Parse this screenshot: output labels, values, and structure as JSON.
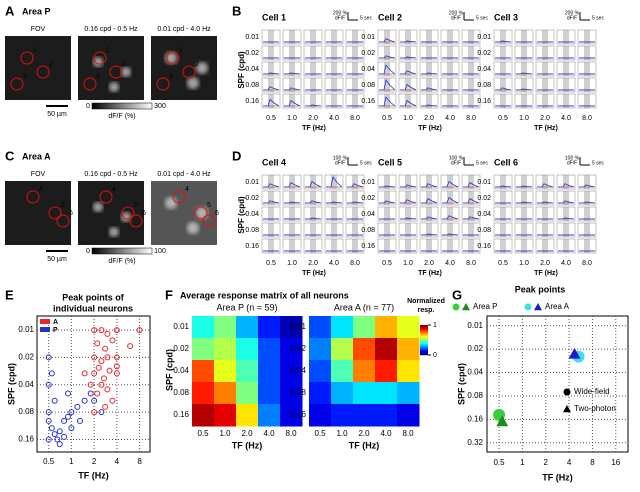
{
  "A": {
    "label": "A",
    "title": "Area P",
    "image_titles": [
      "FOV",
      "0.16 cpd - 0.5 Hz",
      "0.01 cpd - 4.0 Hz"
    ],
    "roi_labels": [
      "1",
      "2",
      "3"
    ],
    "scale_bar": "50 µm",
    "colorbar_ticks": [
      0,
      300
    ],
    "colorbar_label": "dF/F (%)"
  },
  "B": {
    "label": "B",
    "ylabel": "SPF (cpd)",
    "xlabel": "TF (Hz)",
    "yticks": [
      0.01,
      0.02,
      0.04,
      0.08,
      0.16
    ],
    "xticks": [
      "0.5",
      "1.0",
      "2.0",
      "4.0",
      "8.0"
    ],
    "scale_unit": "dF/F",
    "scale_time": "5 sec",
    "cells": [
      {
        "name": "Cell 1",
        "scale": "200 %",
        "peaks": [
          [
            0,
            0,
            0,
            0,
            0
          ],
          [
            0,
            0,
            0,
            0,
            0
          ],
          [
            0.1,
            0.1,
            0,
            0,
            0
          ],
          [
            0.3,
            0.2,
            0,
            0,
            0
          ],
          [
            0.6,
            0.5,
            0.1,
            0,
            0
          ]
        ]
      },
      {
        "name": "Cell 2",
        "scale": "200 %",
        "peaks": [
          [
            0.3,
            0.1,
            0,
            0,
            0
          ],
          [
            0.2,
            0.1,
            0,
            0,
            0
          ],
          [
            0.8,
            0.3,
            0.1,
            0,
            0
          ],
          [
            0.9,
            0.5,
            0.2,
            0,
            0
          ],
          [
            0.8,
            0.5,
            0.1,
            0,
            0
          ]
        ]
      },
      {
        "name": "Cell 3",
        "scale": "200 %",
        "peaks": [
          [
            0.1,
            0,
            0,
            0,
            0
          ],
          [
            0,
            0,
            0,
            0,
            0
          ],
          [
            0,
            0.1,
            0,
            0,
            0
          ],
          [
            0.2,
            0.1,
            0,
            0,
            0
          ],
          [
            0,
            0,
            0,
            0,
            0
          ]
        ]
      }
    ]
  },
  "C": {
    "label": "C",
    "title": "Area A",
    "image_titles": [
      "FOV",
      "0.16 cpd - 0.5 Hz",
      "0.01 cpd - 4.0 Hz"
    ],
    "roi_labels": [
      "4",
      "5",
      "6"
    ],
    "scale_bar": "50 µm",
    "colorbar_ticks": [
      0,
      100
    ],
    "colorbar_label": "dF/F (%)"
  },
  "D": {
    "label": "D",
    "ylabel": "SPF (cpd)",
    "xlabel": "TF (Hz)",
    "yticks": [
      0.01,
      0.02,
      0.04,
      0.08,
      0.16
    ],
    "xticks": [
      "0.5",
      "1.0",
      "2.0",
      "4.0",
      "8.0"
    ],
    "scale_unit": "dF/F",
    "scale_time": "5 sec",
    "cells": [
      {
        "name": "Cell 4",
        "scale": "100 %",
        "peaks": [
          [
            0.3,
            0.4,
            0.5,
            0.9,
            0.3
          ],
          [
            0.2,
            0.1,
            0.2,
            0.1,
            0.1
          ],
          [
            0,
            0,
            0.1,
            0,
            0
          ],
          [
            0,
            0,
            0,
            0,
            0
          ],
          [
            0,
            0,
            0,
            0,
            0
          ]
        ]
      },
      {
        "name": "Cell 5",
        "scale": "100 %",
        "peaks": [
          [
            0.1,
            0.2,
            0.3,
            0.5,
            0.4
          ],
          [
            0.2,
            0.3,
            0.4,
            0.5,
            0.4
          ],
          [
            0,
            0.1,
            0.2,
            0.3,
            0.2
          ],
          [
            0,
            0,
            0.1,
            0.1,
            0
          ],
          [
            0,
            0,
            0,
            0,
            0
          ]
        ]
      },
      {
        "name": "Cell 6",
        "scale": "100 %",
        "peaks": [
          [
            0.1,
            0.1,
            0.3,
            0.3,
            0.2
          ],
          [
            0,
            0.1,
            0.1,
            0.2,
            0.1
          ],
          [
            0,
            0,
            0,
            0.1,
            0
          ],
          [
            0,
            0,
            0,
            0,
            0
          ],
          [
            0,
            0,
            0,
            0,
            0
          ]
        ]
      }
    ]
  },
  "E": {
    "label": "E",
    "title_lines": [
      "Peak points of",
      "individual neurons"
    ],
    "xlabel": "TF (Hz)",
    "ylabel": "SPF (cpd)",
    "xlim": [
      0.35,
      11
    ],
    "ylim": [
      0.007,
      0.22
    ],
    "xticks": [
      0.5,
      1,
      2,
      4,
      8
    ],
    "yticks": [
      0.01,
      0.02,
      0.04,
      0.08,
      0.16
    ],
    "series": [
      {
        "name": "A",
        "color": "#e8262a",
        "x": [
          2,
          2.5,
          3,
          4,
          8,
          2.2,
          2.8,
          3.5,
          2,
          2.5,
          3,
          4,
          2.3,
          3.2,
          2,
          2.7,
          4,
          1.8,
          2.5,
          3,
          2.2,
          3.5,
          2.8,
          2,
          4,
          6,
          1.5
        ],
        "y": [
          0.01,
          0.01,
          0.011,
          0.01,
          0.01,
          0.014,
          0.016,
          0.013,
          0.02,
          0.022,
          0.02,
          0.02,
          0.026,
          0.028,
          0.03,
          0.034,
          0.03,
          0.04,
          0.04,
          0.045,
          0.05,
          0.06,
          0.07,
          0.08,
          0.025,
          0.015,
          0.03
        ]
      },
      {
        "name": "P",
        "color": "#2433d0",
        "x": [
          0.5,
          0.55,
          0.6,
          0.5,
          0.65,
          0.7,
          0.8,
          0.5,
          0.9,
          1,
          1.2,
          1.5,
          0.6,
          0.5,
          0.55,
          0.5,
          1.8,
          2,
          2.5,
          0.7,
          0.8,
          1,
          1.3,
          0.9
        ],
        "y": [
          0.1,
          0.12,
          0.14,
          0.16,
          0.16,
          0.13,
          0.1,
          0.08,
          0.09,
          0.08,
          0.07,
          0.06,
          0.06,
          0.02,
          0.03,
          0.04,
          0.05,
          0.06,
          0.08,
          0.18,
          0.15,
          0.12,
          0.1,
          0.05
        ]
      }
    ]
  },
  "F": {
    "label": "F",
    "title": "Average response matrix of all neurons",
    "colorbar_title": [
      "Normalized",
      "resp."
    ],
    "colorbar_ticks": [
      0,
      1
    ],
    "xlabel": "TF (Hz)",
    "ylabel": "SPF (cpd)",
    "xticks": [
      "0.5",
      "1.0",
      "2.0",
      "4.0",
      "8.0"
    ],
    "yticks": [
      0.01,
      0.02,
      0.04,
      0.08,
      0.16
    ],
    "matrices": [
      {
        "name": "Area P (n = 59)",
        "values": [
          [
            0.4,
            0.5,
            0.3,
            0.15,
            0.05
          ],
          [
            0.5,
            0.55,
            0.4,
            0.2,
            0.1
          ],
          [
            0.8,
            0.6,
            0.45,
            0.2,
            0.1
          ],
          [
            0.85,
            0.75,
            0.5,
            0.2,
            0.1
          ],
          [
            0.95,
            0.9,
            0.65,
            0.25,
            0.1
          ]
        ]
      },
      {
        "name": "Area A (n = 77)",
        "values": [
          [
            0.2,
            0.35,
            0.5,
            0.7,
            0.6
          ],
          [
            0.25,
            0.55,
            0.8,
            0.95,
            0.7
          ],
          [
            0.2,
            0.45,
            0.75,
            0.85,
            0.65
          ],
          [
            0.15,
            0.3,
            0.35,
            0.35,
            0.3
          ],
          [
            0.1,
            0.15,
            0.15,
            0.15,
            0.1
          ]
        ]
      }
    ]
  },
  "G": {
    "label": "G",
    "title": "Peak points",
    "xlabel": "TF (Hz)",
    "ylabel": "SPF (cpd)",
    "xlim": [
      0.35,
      23
    ],
    "ylim": [
      0.0075,
      0.42
    ],
    "xticks": [
      0.5,
      1,
      2,
      4,
      8,
      16
    ],
    "yticks": [
      0.01,
      0.02,
      0.04,
      0.08,
      0.16,
      0.32
    ],
    "methods": [
      "Wide-field",
      "Two-photon"
    ],
    "areas": [
      {
        "name": "Area P",
        "circle_color": "#3acc3a",
        "triangle_color": "#1e8a1e",
        "wide_field": [
          0.5,
          0.14
        ],
        "two_photon": [
          0.55,
          0.17
        ]
      },
      {
        "name": "Area A",
        "circle_color": "#3fe0ea",
        "triangle_color": "#1a1ad0",
        "wide_field": [
          5.3,
          0.025
        ],
        "two_photon": [
          4.7,
          0.023
        ]
      }
    ]
  }
}
